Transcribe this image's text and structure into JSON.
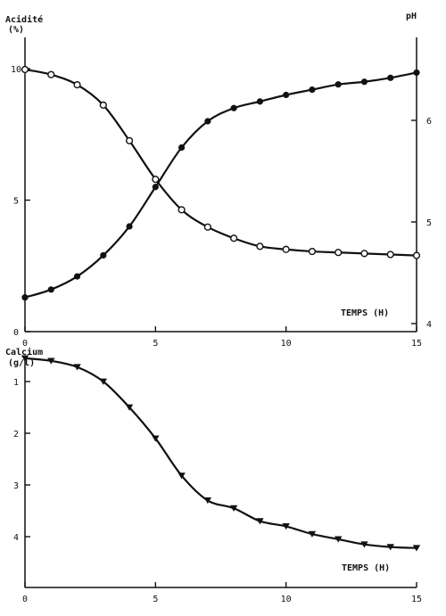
{
  "chart_data": [
    {
      "type": "line",
      "x_axis": {
        "label": "TEMPS (H)",
        "range": [
          0,
          15
        ],
        "ticks": [
          0,
          5,
          10,
          15
        ]
      },
      "y_axis_left": {
        "label_line1": "Acidité",
        "label_line2": "(%)",
        "range": [
          0,
          10
        ],
        "ticks": [
          0,
          5,
          10
        ]
      },
      "y_axis_right": {
        "label": "pH",
        "range": [
          4,
          6.7
        ],
        "ticks": [
          4,
          5,
          6
        ]
      },
      "series": [
        {
          "marker": "filled-circle",
          "axis": "left",
          "points": [
            [
              0,
              1.3
            ],
            [
              1,
              1.6
            ],
            [
              2,
              2.1
            ],
            [
              3,
              2.9
            ],
            [
              4,
              4.0
            ],
            [
              5,
              5.5
            ],
            [
              6,
              7.0
            ],
            [
              7,
              8.0
            ],
            [
              8,
              8.5
            ],
            [
              9,
              8.75
            ],
            [
              10,
              9.0
            ],
            [
              11,
              9.2
            ],
            [
              12,
              9.4
            ],
            [
              13,
              9.5
            ],
            [
              14,
              9.65
            ],
            [
              15,
              9.85
            ]
          ]
        },
        {
          "marker": "open-circle",
          "axis": "right",
          "points": [
            [
              0,
              6.5
            ],
            [
              1,
              6.45
            ],
            [
              2,
              6.35
            ],
            [
              3,
              6.15
            ],
            [
              4,
              5.8
            ],
            [
              5,
              5.42
            ],
            [
              6,
              5.12
            ],
            [
              7,
              4.95
            ],
            [
              8,
              4.84
            ],
            [
              9,
              4.76
            ],
            [
              10,
              4.73
            ],
            [
              11,
              4.71
            ],
            [
              12,
              4.7
            ],
            [
              13,
              4.69
            ],
            [
              14,
              4.68
            ],
            [
              15,
              4.67
            ]
          ]
        }
      ]
    },
    {
      "type": "line",
      "x_axis": {
        "label": "TEMPS (H)",
        "range": [
          0,
          15
        ],
        "ticks": [
          0,
          5,
          10,
          15
        ]
      },
      "y_axis_left": {
        "label_line1": "Calcium",
        "label_line2": "(g/l)",
        "range": [
          0,
          4.4
        ],
        "ticks": [
          1,
          2,
          3,
          4
        ]
      },
      "series": [
        {
          "marker": "filled-triangle-down",
          "axis": "left",
          "points": [
            [
              0,
              0.55
            ],
            [
              1,
              0.6
            ],
            [
              2,
              0.72
            ],
            [
              3,
              1.0
            ],
            [
              4,
              1.5
            ],
            [
              5,
              2.1
            ],
            [
              6,
              2.82
            ],
            [
              7,
              3.3
            ],
            [
              8,
              3.45
            ],
            [
              9,
              3.7
            ],
            [
              10,
              3.8
            ],
            [
              11,
              3.95
            ],
            [
              12,
              4.05
            ],
            [
              13,
              4.15
            ],
            [
              14,
              4.2
            ],
            [
              15,
              4.22
            ]
          ]
        }
      ]
    }
  ]
}
